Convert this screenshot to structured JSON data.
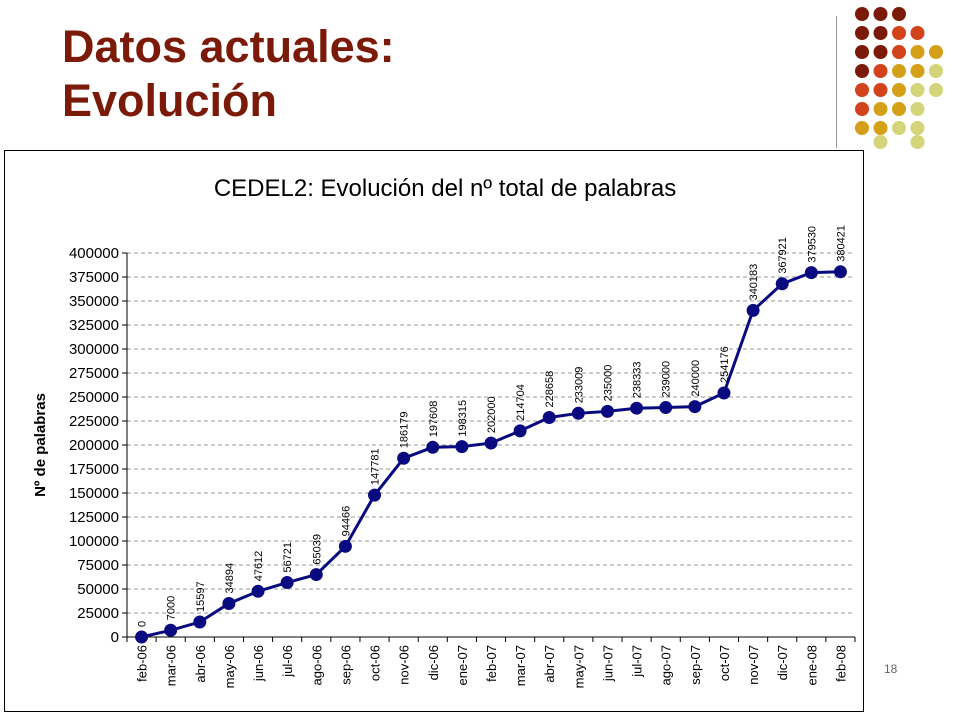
{
  "slide": {
    "title_line1": "Datos actuales:",
    "title_line2": "Evolución",
    "page_number": "18",
    "colors": {
      "title": "#7b1a08",
      "series": "#0a0a80",
      "dot_palette": [
        "#7b1a08",
        "#d2421b",
        "#d4a017",
        "#d4d47a"
      ]
    }
  },
  "chart_data": {
    "type": "line",
    "title": "CEDEL2: Evolución del nº total de palabras",
    "xlabel": "",
    "ylabel": "Nº de palabras",
    "ylim": [
      0,
      400000
    ],
    "ytick_step": 25000,
    "grid": true,
    "legend": "none",
    "categories": [
      "feb-06",
      "mar-06",
      "abr-06",
      "may-06",
      "jun-06",
      "jul-06",
      "ago-06",
      "sep-06",
      "oct-06",
      "nov-06",
      "dic-06",
      "ene-07",
      "feb-07",
      "mar-07",
      "abr-07",
      "may-07",
      "jun-07",
      "jul-07",
      "ago-07",
      "sep-07",
      "oct-07",
      "nov-07",
      "dic-07",
      "ene-08",
      "feb-08"
    ],
    "series": [
      {
        "values": [
          0,
          7000,
          15597,
          34894,
          47612,
          56721,
          65039,
          94466,
          147781,
          186179,
          197608,
          198315,
          202000,
          214704,
          228658,
          233009,
          235000,
          238333,
          239000,
          240000,
          254176,
          340183,
          367921,
          379530,
          380421
        ]
      }
    ]
  }
}
